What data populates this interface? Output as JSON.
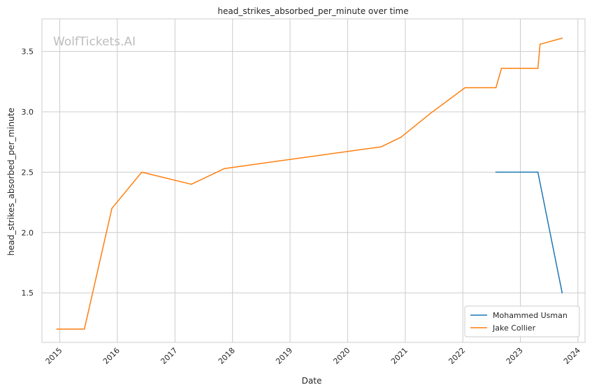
{
  "chart_data": {
    "type": "line",
    "title": "head_strikes_absorbed_per_minute over time",
    "xlabel": "Date",
    "ylabel": "head_strikes_absorbed_per_minute",
    "watermark": "WolfTickets.AI",
    "x_ticks": [
      "2015",
      "2016",
      "2017",
      "2018",
      "2019",
      "2020",
      "2021",
      "2022",
      "2023",
      "2024"
    ],
    "y_ticks": [
      "1.5",
      "2.0",
      "2.5",
      "3.0",
      "3.5"
    ],
    "xlim": [
      "2014-09-10",
      "2024-02-15"
    ],
    "ylim": [
      1.09,
      3.77
    ],
    "grid": true,
    "legend_position": "lower right",
    "series": [
      {
        "name": "Mohammed Usman",
        "color": "#1f77b4",
        "points": [
          {
            "x": "2022-07-30",
            "y": 2.5
          },
          {
            "x": "2023-04-22",
            "y": 2.5
          },
          {
            "x": "2023-09-23",
            "y": 1.5
          }
        ]
      },
      {
        "name": "Jake Collier",
        "color": "#ff7f0e",
        "points": [
          {
            "x": "2014-12-13",
            "y": 1.2
          },
          {
            "x": "2015-06-06",
            "y": 1.2
          },
          {
            "x": "2015-11-28",
            "y": 2.2
          },
          {
            "x": "2016-06-04",
            "y": 2.5
          },
          {
            "x": "2017-04-15",
            "y": 2.4
          },
          {
            "x": "2017-11-11",
            "y": 2.53
          },
          {
            "x": "2020-08-01",
            "y": 2.71
          },
          {
            "x": "2020-12-05",
            "y": 2.79
          },
          {
            "x": "2021-06-12",
            "y": 2.99
          },
          {
            "x": "2022-01-15",
            "y": 3.2
          },
          {
            "x": "2022-07-30",
            "y": 3.2
          },
          {
            "x": "2022-09-03",
            "y": 3.36
          },
          {
            "x": "2023-04-22",
            "y": 3.36
          },
          {
            "x": "2023-05-06",
            "y": 3.56
          },
          {
            "x": "2023-09-23",
            "y": 3.61
          }
        ]
      }
    ]
  }
}
